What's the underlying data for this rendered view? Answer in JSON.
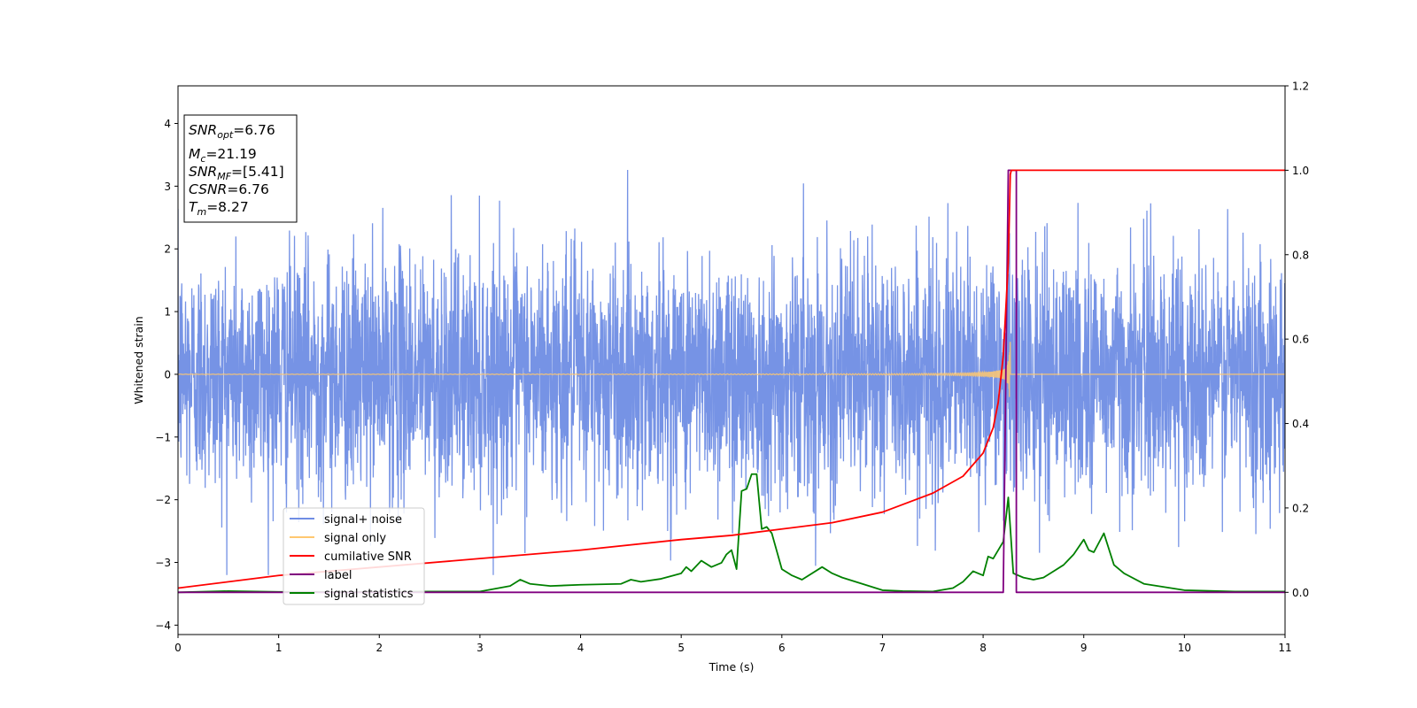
{
  "chart_data": {
    "type": "line",
    "xlabel": "Time (s)",
    "ylabel": "Whitened strain",
    "xlim": [
      0,
      11
    ],
    "ylim_left": [
      -4.15,
      4.6
    ],
    "ylim_right": [
      -0.1,
      1.2
    ],
    "x_ticks": [
      "0",
      "1",
      "2",
      "3",
      "4",
      "5",
      "6",
      "7",
      "8",
      "9",
      "10",
      "11"
    ],
    "y_ticks_left": [
      "−4",
      "−3",
      "−2",
      "−1",
      "0",
      "1",
      "2",
      "3",
      "4"
    ],
    "y_ticks_right": [
      "0.0",
      "0.2",
      "0.4",
      "0.6",
      "0.8",
      "1.0",
      "1.2"
    ],
    "annotation": [
      {
        "base": "SNR",
        "sub": "opt",
        "value": "=6.76"
      },
      {
        "base": "M",
        "sub": "c",
        "value": "=21.19"
      },
      {
        "base": "SNR",
        "sub": "MF",
        "value": "=[5.41]"
      },
      {
        "base": "CSNR",
        "sub": "",
        "value": "=6.76"
      },
      {
        "base": "T",
        "sub": "m",
        "value": "=8.27"
      }
    ],
    "legend": {
      "placement": "lower-left",
      "entries": [
        {
          "label": "signal+ noise",
          "color": "#6f8de4"
        },
        {
          "label": "signal only",
          "color": "#ffc870"
        },
        {
          "label": "cumilative SNR",
          "color": "#ff0000"
        },
        {
          "label": "label",
          "color": "#800080"
        },
        {
          "label": "signal statistics",
          "color": "#008000"
        }
      ]
    },
    "series": [
      {
        "name": "signal+ noise",
        "axis": "left",
        "color": "#6f8de4",
        "description_only": "whitened Gaussian noise, amplitude ~±1.6, peaks up to ±3.4",
        "x_range": [
          0,
          11
        ]
      },
      {
        "name": "signal only",
        "axis": "left",
        "color": "#ffc870",
        "chirp_merger_time": 8.27,
        "peak_amplitude": 0.55,
        "x_range": [
          0,
          11
        ]
      },
      {
        "name": "cumilative SNR",
        "axis": "right",
        "color": "#ff0000",
        "x": [
          0,
          1,
          2,
          3,
          4,
          5,
          5.5,
          6,
          6.5,
          7,
          7.5,
          7.8,
          8.0,
          8.1,
          8.15,
          8.2,
          8.25,
          8.27,
          8.28,
          11
        ],
        "y": [
          0.01,
          0.04,
          0.06,
          0.08,
          0.1,
          0.125,
          0.135,
          0.15,
          0.165,
          0.19,
          0.235,
          0.275,
          0.33,
          0.39,
          0.45,
          0.56,
          0.78,
          0.99,
          1.0,
          1.0
        ]
      },
      {
        "name": "label",
        "axis": "right",
        "color": "#800080",
        "x": [
          0,
          8.2,
          8.25,
          8.33,
          8.33,
          11
        ],
        "y": [
          0,
          0,
          1,
          1,
          0,
          0
        ]
      },
      {
        "name": "signal statistics",
        "axis": "right",
        "color": "#008000",
        "x": [
          0,
          0.5,
          1,
          2,
          2.5,
          3,
          3.3,
          3.4,
          3.5,
          3.7,
          4,
          4.4,
          4.5,
          4.6,
          4.8,
          5,
          5.05,
          5.1,
          5.2,
          5.3,
          5.4,
          5.45,
          5.5,
          5.55,
          5.6,
          5.65,
          5.7,
          5.75,
          5.8,
          5.85,
          5.9,
          6,
          6.1,
          6.2,
          6.4,
          6.5,
          6.6,
          6.8,
          7,
          7.2,
          7.5,
          7.7,
          7.8,
          7.9,
          8,
          8.05,
          8.1,
          8.2,
          8.25,
          8.3,
          8.4,
          8.5,
          8.6,
          8.7,
          8.8,
          8.9,
          9,
          9.05,
          9.1,
          9.2,
          9.3,
          9.4,
          9.6,
          10,
          10.5,
          11
        ],
        "y": [
          0,
          0.003,
          0.001,
          0.001,
          0.002,
          0.002,
          0.015,
          0.03,
          0.02,
          0.015,
          0.018,
          0.02,
          0.03,
          0.025,
          0.032,
          0.045,
          0.06,
          0.05,
          0.075,
          0.06,
          0.07,
          0.09,
          0.1,
          0.055,
          0.24,
          0.245,
          0.28,
          0.28,
          0.15,
          0.155,
          0.14,
          0.055,
          0.04,
          0.03,
          0.06,
          0.045,
          0.035,
          0.02,
          0.005,
          0.003,
          0.002,
          0.01,
          0.025,
          0.05,
          0.04,
          0.085,
          0.08,
          0.12,
          0.225,
          0.045,
          0.035,
          0.03,
          0.035,
          0.05,
          0.065,
          0.09,
          0.125,
          0.1,
          0.095,
          0.14,
          0.065,
          0.045,
          0.02,
          0.005,
          0.002,
          0.002
        ]
      }
    ],
    "grid": false
  }
}
